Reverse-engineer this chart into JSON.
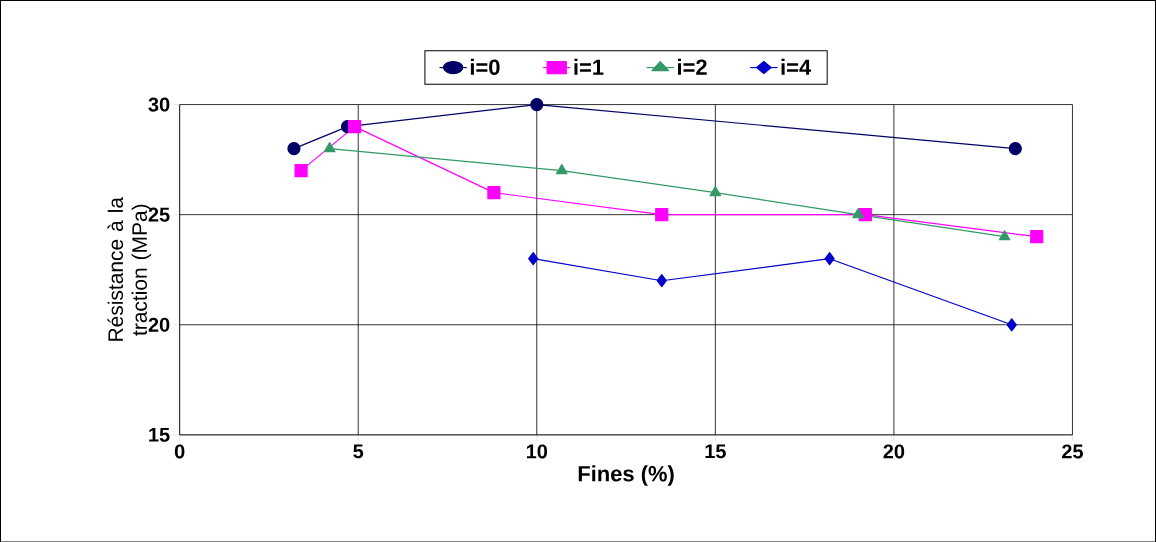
{
  "chart_data": {
    "type": "line",
    "xlabel": "Fines (%)",
    "ylabel": "Résistance à la traction (MPa)",
    "xlim": [
      0,
      25
    ],
    "ylim": [
      15,
      30
    ],
    "xticks": [
      0,
      5,
      10,
      15,
      20,
      25
    ],
    "yticks": [
      15,
      20,
      25,
      30
    ],
    "grid": true,
    "legend": "top",
    "series": [
      {
        "name": "i=0",
        "color": "#000066",
        "marker": "circle",
        "x": [
          3.2,
          4.7,
          10.0,
          23.4
        ],
        "values": [
          28,
          29,
          30,
          28
        ]
      },
      {
        "name": "i=1",
        "color": "#ff00ff",
        "marker": "square",
        "x": [
          3.4,
          4.9,
          8.8,
          13.5,
          19.2,
          24.0
        ],
        "values": [
          27,
          29,
          26,
          25,
          25,
          24
        ]
      },
      {
        "name": "i=2",
        "color": "#339966",
        "marker": "triangle",
        "x": [
          4.2,
          10.7,
          15.0,
          19.0,
          23.1
        ],
        "values": [
          28,
          27,
          26,
          25,
          24
        ]
      },
      {
        "name": "i=4",
        "color": "#0000cc",
        "marker": "diamond",
        "x": [
          9.9,
          13.5,
          18.2,
          23.3
        ],
        "values": [
          23,
          22,
          23,
          20
        ]
      }
    ]
  }
}
